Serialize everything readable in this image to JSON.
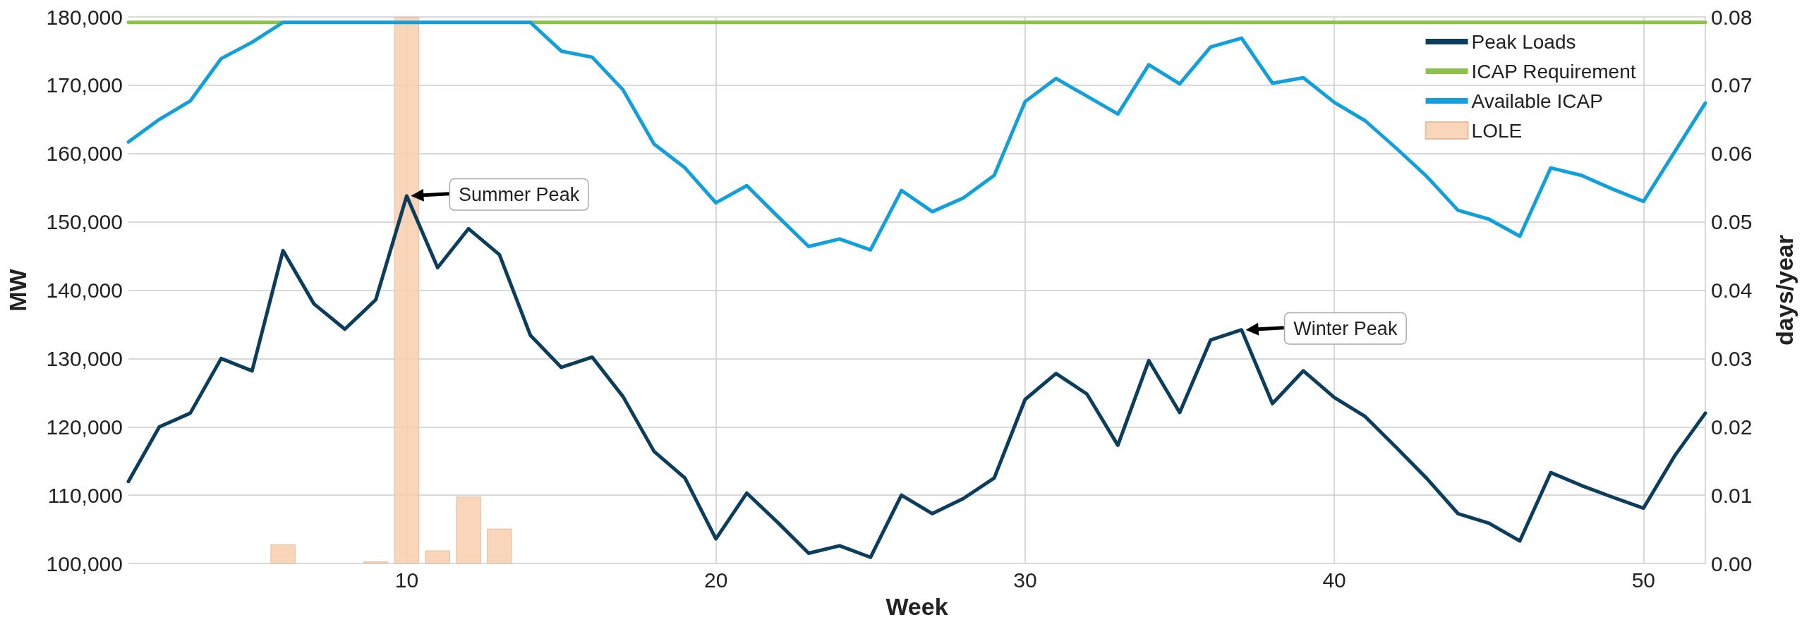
{
  "chart_data": {
    "type": "line",
    "xlabel": "Week",
    "ylabel": "MW",
    "y2label": "days/year",
    "x": [
      1,
      2,
      3,
      4,
      5,
      6,
      7,
      8,
      9,
      10,
      11,
      12,
      13,
      14,
      15,
      16,
      17,
      18,
      19,
      20,
      21,
      22,
      23,
      24,
      25,
      26,
      27,
      28,
      29,
      30,
      31,
      32,
      33,
      34,
      35,
      36,
      37,
      38,
      39,
      40,
      41,
      42,
      43,
      44,
      45,
      46,
      47,
      48,
      49,
      50,
      51,
      52
    ],
    "series": [
      {
        "name": "Peak Loads",
        "color": "#0b3d5c",
        "values": [
          112000,
          120000,
          122000,
          130000,
          128200,
          145800,
          138000,
          134300,
          138600,
          153800,
          143300,
          149000,
          145200,
          133400,
          128700,
          130200,
          124400,
          116400,
          112500,
          103600,
          110300,
          106000,
          101500,
          102600,
          100900,
          110000,
          107300,
          109500,
          112500,
          124000,
          127800,
          124800,
          117300,
          129700,
          122100,
          132700,
          134200,
          123400,
          128200,
          124300,
          121500,
          117000,
          112400,
          107300,
          105900,
          103300,
          113300,
          111400,
          109700,
          108100,
          115700,
          122000
        ]
      },
      {
        "name": "ICAP Requirement",
        "color": "#8bc34a",
        "values": [
          179200,
          179200,
          179200,
          179200,
          179200,
          179200,
          null,
          null,
          null,
          null,
          null,
          null,
          null,
          179200,
          179200,
          179200,
          179200,
          179200,
          179200,
          179200,
          179200,
          179200,
          179200,
          179200,
          179200,
          179200,
          179200,
          179200,
          179200,
          179200,
          179200,
          179200,
          179200,
          179200,
          179200,
          179200,
          179200,
          179200,
          179200,
          179200,
          179200,
          179200,
          179200,
          179200,
          179200,
          179200,
          179200,
          179200,
          179200,
          179200,
          179200,
          179200
        ]
      },
      {
        "name": "Available ICAP",
        "color": "#12a0dc",
        "values": [
          161700,
          165000,
          167700,
          173900,
          176300,
          179200,
          179200,
          179200,
          179200,
          179200,
          179200,
          179200,
          179200,
          179200,
          175000,
          174100,
          169300,
          161400,
          157900,
          152800,
          155300,
          150800,
          146400,
          147500,
          145900,
          154600,
          151500,
          153500,
          156800,
          167600,
          171000,
          168400,
          165800,
          173000,
          170200,
          175600,
          176900,
          170300,
          171100,
          167500,
          164800,
          160800,
          156600,
          151700,
          150400,
          147900,
          157900,
          156800,
          154800,
          153000,
          160200,
          167400
        ]
      },
      {
        "name": "LOLE",
        "type": "bar",
        "axis": "y2",
        "color": "#f8cfae",
        "x": [
          6,
          9,
          10,
          11,
          12,
          13
        ],
        "values": [
          0.0028,
          0.0003,
          0.08,
          0.0019,
          0.0098,
          0.0051
        ]
      }
    ],
    "xlim": [
      1,
      52
    ],
    "xticks": [
      10,
      20,
      30,
      40,
      50
    ],
    "ylim": [
      100000,
      180000
    ],
    "yticks": [
      {
        "value": 100000,
        "label": "100,000"
      },
      {
        "value": 110000,
        "label": "110,000"
      },
      {
        "value": 120000,
        "label": "120,000"
      },
      {
        "value": 130000,
        "label": "130,000"
      },
      {
        "value": 140000,
        "label": "140,000"
      },
      {
        "value": 150000,
        "label": "150,000"
      },
      {
        "value": 160000,
        "label": "160,000"
      },
      {
        "value": 170000,
        "label": "170,000"
      },
      {
        "value": 180000,
        "label": "180,000"
      }
    ],
    "y2lim": [
      0,
      0.08
    ],
    "y2ticks": [
      {
        "value": 0,
        "label": "0.00"
      },
      {
        "value": 0.01,
        "label": "0.01"
      },
      {
        "value": 0.02,
        "label": "0.02"
      },
      {
        "value": 0.03,
        "label": "0.03"
      },
      {
        "value": 0.04,
        "label": "0.04"
      },
      {
        "value": 0.05,
        "label": "0.05"
      },
      {
        "value": 0.06,
        "label": "0.06"
      },
      {
        "value": 0.07,
        "label": "0.07"
      },
      {
        "value": 0.08,
        "label": "0.08"
      }
    ],
    "annotations": [
      {
        "text": "Summer Peak",
        "x": 10,
        "y": 153800
      },
      {
        "text": "Winter Peak",
        "x": 37,
        "y": 134200
      }
    ],
    "grid": true,
    "legend": "top right",
    "marker": "none",
    "line_style": "solid"
  }
}
